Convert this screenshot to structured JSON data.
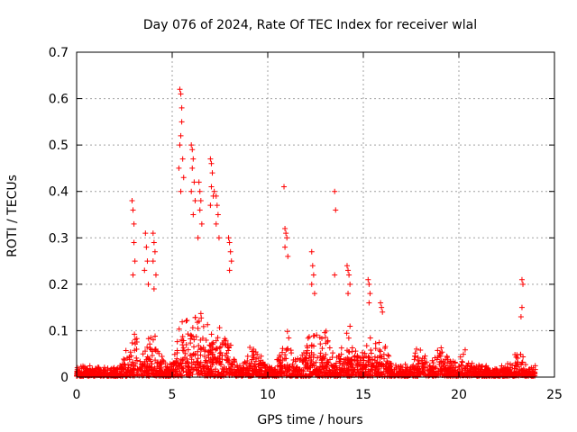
{
  "chart_data": {
    "type": "scatter",
    "title": "Day 076 of 2024, Rate Of TEC Index for receiver wlal",
    "xlabel": "GPS time / hours",
    "ylabel": "ROTI / TECUs",
    "xlim": [
      0,
      25
    ],
    "ylim": [
      0,
      0.7
    ],
    "xticks": [
      "0",
      "5",
      "10",
      "15",
      "20",
      "25"
    ],
    "yticks": [
      "0",
      "0.1",
      "0.2",
      "0.3",
      "0.4",
      "0.5",
      "0.6",
      "0.7"
    ],
    "grid": true,
    "marker": "+",
    "color": "#ff0000",
    "series": [
      {
        "name": "ROTI",
        "x": [
          2.9,
          2.95,
          3.0,
          3.0,
          3.05,
          2.95,
          3.6,
          3.65,
          3.7,
          3.55,
          3.75,
          4.0,
          4.05,
          4.1,
          4.0,
          4.15,
          4.05,
          5.4,
          5.45,
          5.5,
          5.5,
          5.45,
          5.4,
          5.55,
          5.35,
          5.6,
          5.45,
          6.0,
          6.05,
          6.1,
          6.05,
          6.15,
          6.0,
          6.2,
          6.1,
          6.4,
          6.45,
          6.5,
          6.45,
          6.55,
          6.35,
          7.0,
          7.05,
          7.1,
          7.05,
          7.15,
          7.0,
          7.2,
          7.3,
          7.35,
          7.4,
          7.3,
          7.45,
          7.95,
          8.0,
          8.05,
          8.1,
          8.0,
          10.85,
          10.9,
          10.95,
          11.0,
          10.9,
          11.05,
          12.3,
          12.35,
          12.4,
          12.3,
          12.45,
          13.5,
          13.55,
          13.5,
          14.15,
          14.2,
          14.25,
          14.3,
          14.2,
          15.25,
          15.3,
          15.35,
          15.3,
          15.9,
          15.95,
          16.0,
          23.3,
          23.35,
          23.3,
          23.25
        ],
        "y": [
          0.38,
          0.36,
          0.33,
          0.29,
          0.25,
          0.22,
          0.31,
          0.28,
          0.25,
          0.23,
          0.2,
          0.31,
          0.29,
          0.27,
          0.25,
          0.22,
          0.19,
          0.62,
          0.61,
          0.58,
          0.55,
          0.52,
          0.5,
          0.47,
          0.45,
          0.43,
          0.4,
          0.5,
          0.49,
          0.47,
          0.45,
          0.42,
          0.4,
          0.38,
          0.35,
          0.42,
          0.4,
          0.38,
          0.36,
          0.33,
          0.3,
          0.47,
          0.46,
          0.44,
          0.41,
          0.39,
          0.37,
          0.4,
          0.39,
          0.37,
          0.35,
          0.33,
          0.3,
          0.3,
          0.29,
          0.27,
          0.25,
          0.23,
          0.41,
          0.32,
          0.31,
          0.3,
          0.28,
          0.26,
          0.27,
          0.24,
          0.22,
          0.2,
          0.18,
          0.4,
          0.36,
          0.22,
          0.24,
          0.23,
          0.22,
          0.2,
          0.18,
          0.21,
          0.2,
          0.18,
          0.16,
          0.16,
          0.15,
          0.14,
          0.21,
          0.2,
          0.15,
          0.13
        ]
      }
    ]
  }
}
